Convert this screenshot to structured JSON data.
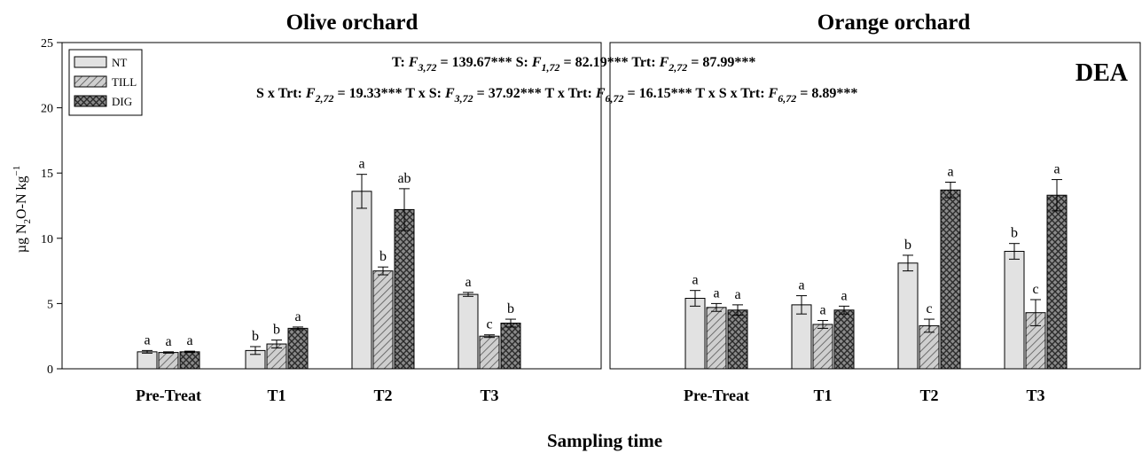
{
  "figure": {
    "x_axis_label": "Sampling time",
    "y_axis_label": "µg N",
    "y_axis_label_sub": "2",
    "y_axis_label_rest": "O-N kg",
    "y_axis_label_sup": "−1",
    "panel_tag": "DEA",
    "stats_line1": [
      {
        "pre": "T: ",
        "f": "F",
        "sub": "3,72",
        "post": " = 139.67***  "
      },
      {
        "pre": "S: ",
        "f": "F",
        "sub": "1,72",
        "post": " = 82.19***  "
      },
      {
        "pre": "Trt: ",
        "f": "F",
        "sub": "2,72",
        "post": " = 87.99***"
      }
    ],
    "stats_line2": [
      {
        "pre": "S x Trt: ",
        "f": "F",
        "sub": "2,72",
        "post": " = 19.33***  "
      },
      {
        "pre": "T x S: ",
        "f": "F",
        "sub": "3,72",
        "post": " = 37.92***  "
      },
      {
        "pre": "T x Trt: ",
        "f": "F",
        "sub": "6,72",
        "post": " = 16.15***  "
      },
      {
        "pre": "T x S x Trt: ",
        "f": "F",
        "sub": "6,72",
        "post": " = 8.89***"
      }
    ],
    "colors": {
      "NT": "#e0e0e0",
      "TILL": "#c8c8c8",
      "DIG": "#7a7a7a",
      "axis": "#000000"
    }
  },
  "chart_data": [
    {
      "type": "bar",
      "title": "Olive orchard",
      "xlabel": "Sampling time",
      "ylabel": "µg N2O-N kg−1",
      "ylim": [
        0,
        25
      ],
      "yticks": [
        0,
        5,
        10,
        15,
        20,
        25
      ],
      "categories": [
        "Pre-Treat",
        "T1",
        "T2",
        "T3"
      ],
      "legend": "top-left",
      "grid": false,
      "series": [
        {
          "name": "NT",
          "values": [
            1.3,
            1.4,
            13.6,
            5.7
          ],
          "errors": [
            0.1,
            0.3,
            1.3,
            0.15
          ],
          "letters": [
            "a",
            "b",
            "a",
            "a"
          ]
        },
        {
          "name": "TILL",
          "values": [
            1.25,
            1.9,
            7.5,
            2.5
          ],
          "errors": [
            0.05,
            0.3,
            0.3,
            0.1
          ],
          "letters": [
            "a",
            "b",
            "b",
            "c"
          ]
        },
        {
          "name": "DIG",
          "values": [
            1.3,
            3.1,
            12.2,
            3.5
          ],
          "errors": [
            0.05,
            0.1,
            1.6,
            0.3
          ],
          "letters": [
            "a",
            "a",
            "ab",
            "b"
          ]
        }
      ]
    },
    {
      "type": "bar",
      "title": "Orange orchard",
      "xlabel": "Sampling time",
      "ylabel": "",
      "ylim": [
        0,
        25
      ],
      "categories": [
        "Pre-Treat",
        "T1",
        "T2",
        "T3"
      ],
      "grid": false,
      "series": [
        {
          "name": "NT",
          "values": [
            5.4,
            4.9,
            8.1,
            9.0
          ],
          "errors": [
            0.6,
            0.7,
            0.6,
            0.6
          ],
          "letters": [
            "a",
            "a",
            "b",
            "b"
          ]
        },
        {
          "name": "TILL",
          "values": [
            4.7,
            3.4,
            3.3,
            4.3
          ],
          "errors": [
            0.3,
            0.3,
            0.5,
            1.0
          ],
          "letters": [
            "a",
            "a",
            "c",
            "c"
          ]
        },
        {
          "name": "DIG",
          "values": [
            4.5,
            4.5,
            13.7,
            13.3
          ],
          "errors": [
            0.4,
            0.3,
            0.6,
            1.2
          ],
          "letters": [
            "a",
            "a",
            "a",
            "a"
          ]
        }
      ]
    }
  ]
}
